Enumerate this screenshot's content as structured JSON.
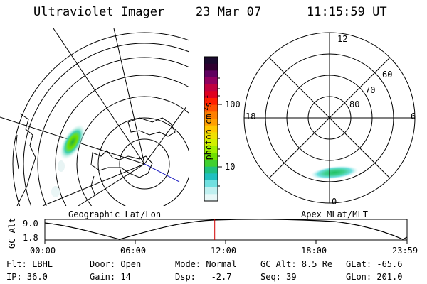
{
  "header": {
    "instrument": "Ultraviolet Imager",
    "date": "23 Mar 07",
    "time": "11:15:59 UT"
  },
  "left_map": {
    "caption": "Geographic Lat/Lon"
  },
  "right_map": {
    "caption": "Apex MLat/MLT",
    "mlt_labels": {
      "top": "12",
      "left": "18",
      "right": "6",
      "bottom": "0"
    },
    "lat_labels": [
      "60",
      "70",
      "80"
    ]
  },
  "colorbar": {
    "unit_label": "photon cm",
    "unit_exp1": "-2",
    "unit_mid": "s",
    "unit_exp2": "-1",
    "ticks": [
      "100",
      "10"
    ],
    "colors": [
      "#1a0a2e",
      "#300030",
      "#600060",
      "#900060",
      "#c00040",
      "#e00020",
      "#ff2000",
      "#ff5000",
      "#ff8000",
      "#ffa000",
      "#ffc800",
      "#f0e000",
      "#d0f000",
      "#a0f000",
      "#70e000",
      "#40d030",
      "#20c080",
      "#20c0c0",
      "#70e0e0",
      "#c0f0f0",
      "#e8f8f8"
    ],
    "accent": "#e00000"
  },
  "altitude_plot": {
    "ylabel": "GC Alt",
    "y_ticks": [
      "9.0",
      "1.8"
    ],
    "x_ticks": [
      "00:00",
      "06:00",
      "12:00",
      "18:00",
      "23:59"
    ],
    "current_time_fraction": 0.469,
    "marker_color": "#d00000"
  },
  "footer": {
    "row1": {
      "flt": "Flt: LBHL",
      "door": "Door: Open",
      "mode": "Mode: Normal",
      "gcalt": "GC Alt: 8.5 Re",
      "glat": "GLat: -65.6"
    },
    "row2": {
      "ip": "IP: 36.0",
      "gain": "Gain: 14",
      "dsp": "Dsp:   -2.7",
      "seq": "Seq: 39",
      "glon": "GLon: 201.0"
    }
  }
}
